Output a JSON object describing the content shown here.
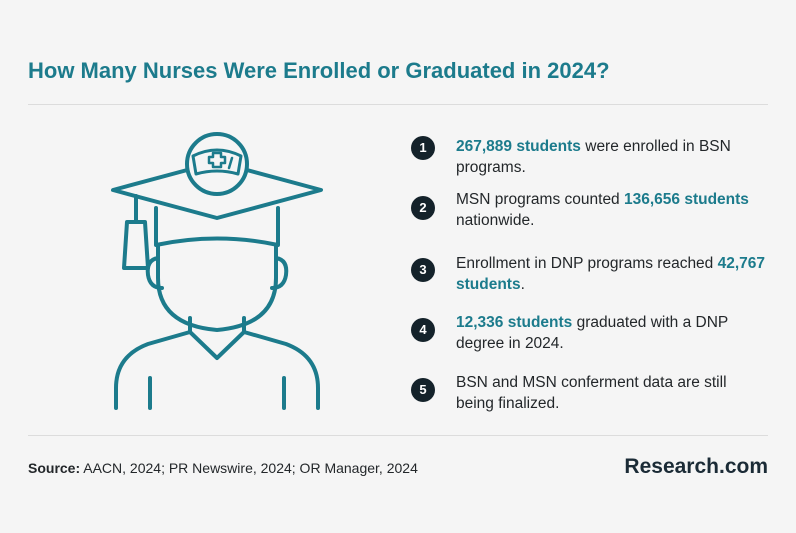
{
  "header": {
    "title": "How Many Nurses Were Enrolled or Graduated in 2024?"
  },
  "illustration": {
    "icon": "graduate-nurse-cap-icon",
    "stroke_color": "#1c7b8c"
  },
  "facts": [
    {
      "number": "1",
      "pre": "",
      "highlight": "267,889 students",
      "post": " were enrolled in BSN programs."
    },
    {
      "number": "2",
      "pre": "MSN programs counted ",
      "highlight": "136,656 students",
      "post": " nationwide."
    },
    {
      "number": "3",
      "pre": "Enrollment in DNP programs reached ",
      "highlight": "42,767 students",
      "post": "."
    },
    {
      "number": "4",
      "pre": "",
      "highlight": "12,336 students",
      "post": " graduated with a DNP degree in 2024."
    },
    {
      "number": "5",
      "pre": "BSN and MSN conferment data are still being finalized.",
      "highlight": "",
      "post": ""
    }
  ],
  "footer": {
    "source_label": "Source:",
    "source_text": " AACN, 2024; PR Newswire, 2024; OR Manager, 2024",
    "logo_main": "Research",
    "logo_suffix": ".com"
  },
  "colors": {
    "accent": "#1c7b8c",
    "badge": "#14222a",
    "background": "#f5f5f5"
  }
}
